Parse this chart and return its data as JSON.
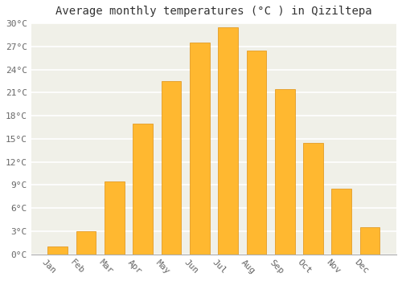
{
  "title": "Average monthly temperatures (°C ) in Qiziltepa",
  "months": [
    "Jan",
    "Feb",
    "Mar",
    "Apr",
    "May",
    "Jun",
    "Jul",
    "Aug",
    "Sep",
    "Oct",
    "Nov",
    "Dec"
  ],
  "temperatures": [
    1.0,
    3.0,
    9.5,
    17.0,
    22.5,
    27.5,
    29.5,
    26.5,
    21.5,
    14.5,
    8.5,
    3.5
  ],
  "bar_color": "#FFB830",
  "bar_edge_color": "#E09010",
  "ylim": [
    0,
    30
  ],
  "yticks": [
    0,
    3,
    6,
    9,
    12,
    15,
    18,
    21,
    24,
    27,
    30
  ],
  "ytick_labels": [
    "0°C",
    "3°C",
    "6°C",
    "9°C",
    "12°C",
    "15°C",
    "18°C",
    "21°C",
    "24°C",
    "27°C",
    "30°C"
  ],
  "background_color": "#f0f0e8",
  "title_background": "#ffffff",
  "grid_color": "#ffffff",
  "title_fontsize": 10,
  "tick_fontsize": 8,
  "bar_width": 0.7,
  "xlabel_rotation": 315,
  "tick_color": "#666666"
}
